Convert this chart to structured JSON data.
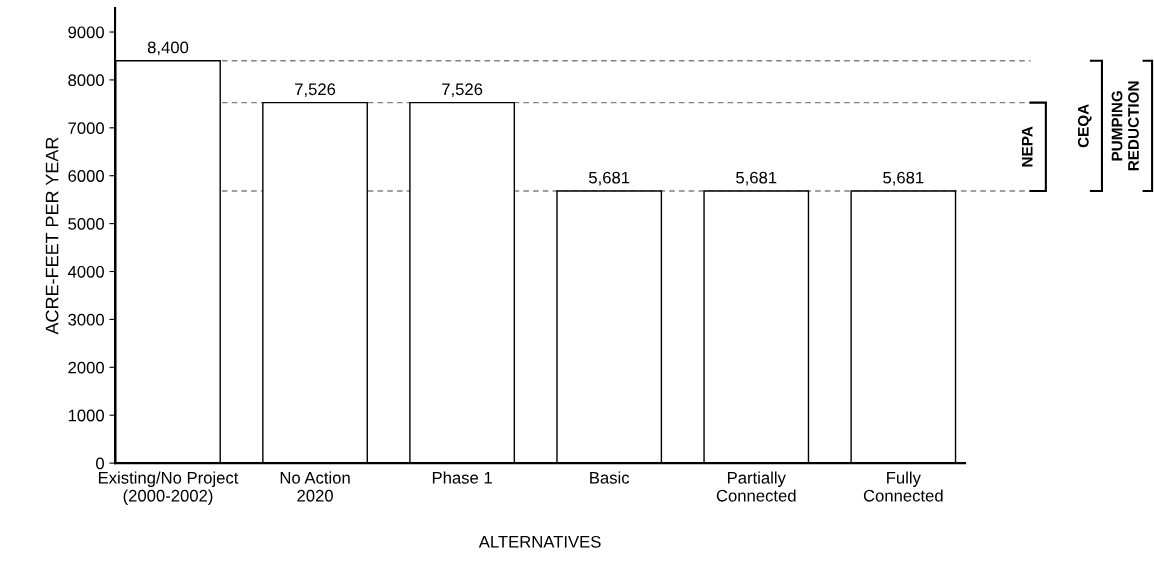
{
  "chart_data": {
    "type": "bar",
    "xlabel": "ALTERNATIVES",
    "ylabel": "ACRE-FEET PER YEAR",
    "categories": [
      "Existing/No Project\n(2000-2002)",
      "No Action\n2020",
      "Phase 1",
      "Basic",
      "Partially\nConnected",
      "Fully\nConnected"
    ],
    "values": [
      8400,
      7526,
      7526,
      5681,
      5681,
      5681
    ],
    "value_labels": [
      "8,400",
      "7,526",
      "7,526",
      "5,681",
      "5,681",
      "5,681"
    ],
    "color": "#ffffff",
    "ylim": [
      0,
      9500
    ],
    "yticks": [
      0,
      1000,
      2000,
      3000,
      4000,
      5000,
      6000,
      7000,
      8000,
      9000
    ],
    "grid": false,
    "ref_lines": [
      {
        "axis": "y",
        "value": 8400,
        "color": "#808080",
        "line_style": "dashed"
      },
      {
        "axis": "y",
        "value": 7526,
        "color": "#808080",
        "line_style": "dashed"
      },
      {
        "axis": "y",
        "value": 5681,
        "color": "#808080",
        "line_style": "dashed"
      }
    ],
    "annotations": [
      "NEPA",
      "CEQA",
      "PUMPING\nREDUCTION"
    ]
  }
}
